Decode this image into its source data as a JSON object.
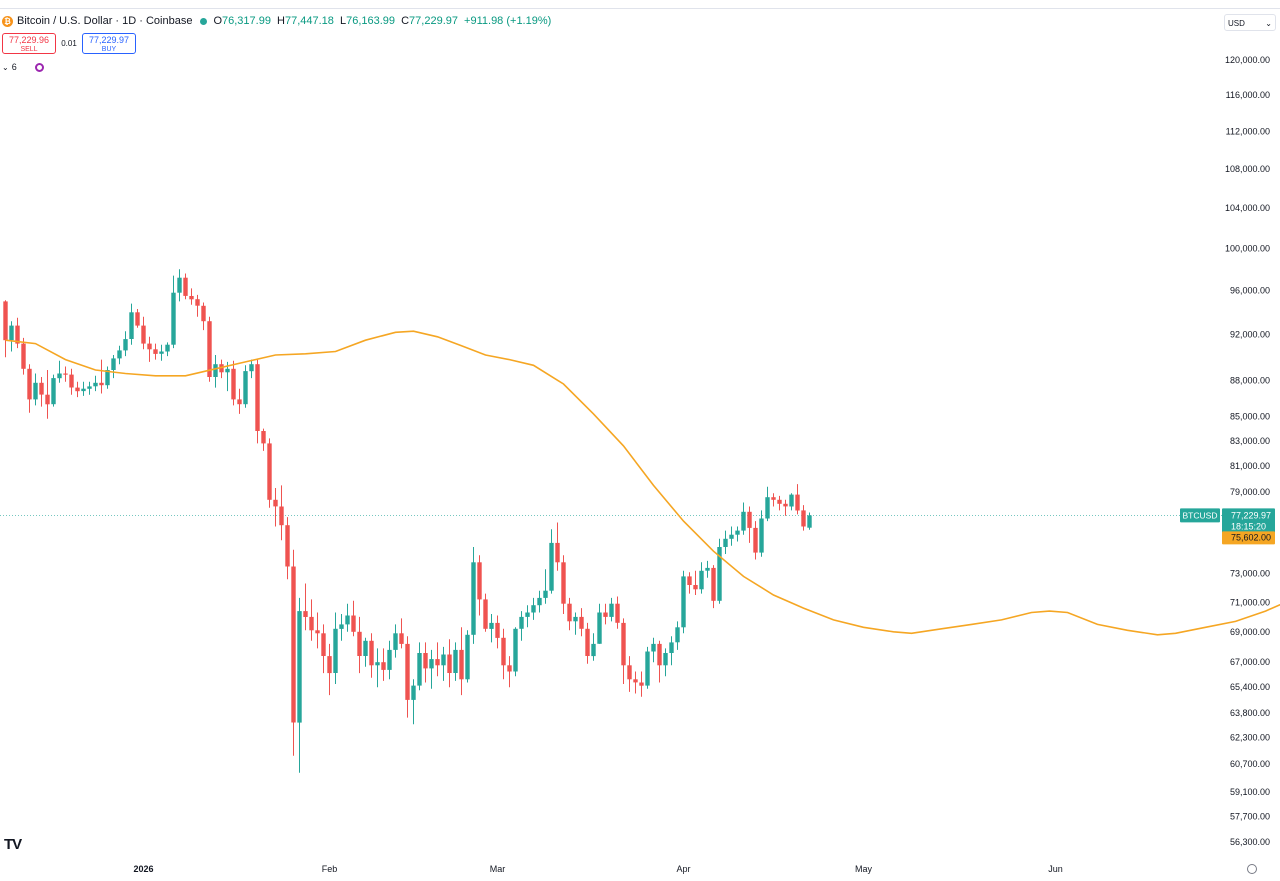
{
  "header": {
    "title": "Bitcoin / U.S. Dollar · 1D · Coinbase",
    "coin_icon": "bitcoin-icon",
    "ohlc": {
      "o_label": "O",
      "o": "76,317.99",
      "h_label": "H",
      "h": "77,447.18",
      "l_label": "L",
      "l": "76,163.99",
      "c_label": "C",
      "c": "77,229.97",
      "change": "+911.98 (+1.19%)"
    }
  },
  "trade": {
    "sell_price": "77,229.96",
    "sell_label": "SELL",
    "spread": "0.01",
    "buy_price": "77,229.97",
    "buy_label": "BUY"
  },
  "indicators": {
    "count": "6",
    "collapse_icon": "chevron-down-icon"
  },
  "currency": {
    "label": "USD",
    "icon": "chevron-down-icon"
  },
  "footer": {
    "logo": "TV",
    "settings_icon": "gear-icon"
  },
  "colors": {
    "up": "#26a69a",
    "down": "#ef5350",
    "ma": "#f5a623",
    "price_tag": "#26a69a",
    "ma_tag": "#f5a623"
  },
  "chart_data": {
    "type": "candlestick",
    "symbol": "BTCUSD",
    "last_price": "77,229.97",
    "countdown": "18:15:20",
    "ma_value": "75,602.00",
    "x_ticks": [
      "2026",
      "Feb",
      "Mar",
      "Apr",
      "May",
      "Jun"
    ],
    "y_ticks": [
      120000,
      116000,
      112000,
      108000,
      104000,
      100000,
      96000,
      92000,
      88000,
      85000,
      83000,
      81000,
      79000,
      73000,
      71000,
      69000,
      67000,
      65400,
      63800,
      62300,
      60700,
      59100,
      57700,
      56300
    ],
    "y_tick_labels": [
      "120,000.00",
      "116,000.00",
      "112,000.00",
      "108,000.00",
      "104,000.00",
      "100,000.00",
      "96,000.00",
      "92,000.00",
      "88,000.00",
      "85,000.00",
      "83,000.00",
      "81,000.00",
      "79,000.00",
      "73,000.00",
      "71,000.00",
      "69,000.00",
      "67,000.00",
      "65,400.00",
      "63,800.00",
      "62,300.00",
      "60,700.00",
      "59,100.00",
      "57,700.00",
      "56,300.00"
    ],
    "candles": [
      [
        95000,
        95100,
        90000,
        91500
      ],
      [
        91500,
        93200,
        90500,
        92800
      ],
      [
        92800,
        93500,
        90800,
        91200
      ],
      [
        91200,
        91700,
        88500,
        89000
      ],
      [
        89000,
        89400,
        85300,
        86400
      ],
      [
        86400,
        88600,
        85900,
        87800
      ],
      [
        87800,
        88300,
        85800,
        86800
      ],
      [
        86800,
        88900,
        84800,
        86000
      ],
      [
        86000,
        88500,
        85800,
        88200
      ],
      [
        88200,
        89700,
        87800,
        88600
      ],
      [
        88600,
        89200,
        87900,
        88500
      ],
      [
        88500,
        89000,
        86800,
        87400
      ],
      [
        87400,
        87900,
        86600,
        87100
      ],
      [
        87100,
        87900,
        86700,
        87300
      ],
      [
        87300,
        87900,
        86800,
        87500
      ],
      [
        87500,
        88400,
        87100,
        87800
      ],
      [
        87800,
        89800,
        86900,
        87600
      ],
      [
        87600,
        89200,
        87300,
        88900
      ],
      [
        88900,
        90200,
        88200,
        89900
      ],
      [
        89900,
        91000,
        89400,
        90600
      ],
      [
        90600,
        92300,
        90100,
        91600
      ],
      [
        91600,
        94800,
        91100,
        94000
      ],
      [
        94000,
        94300,
        92600,
        92800
      ],
      [
        92800,
        93600,
        90700,
        91200
      ],
      [
        91200,
        91800,
        89600,
        90700
      ],
      [
        90700,
        91200,
        89800,
        90300
      ],
      [
        90300,
        91100,
        89700,
        90500
      ],
      [
        90500,
        91300,
        90100,
        91100
      ],
      [
        91100,
        97400,
        90800,
        95800
      ],
      [
        95800,
        98000,
        95000,
        97200
      ],
      [
        97200,
        97600,
        95200,
        95500
      ],
      [
        95500,
        96200,
        94700,
        95200
      ],
      [
        95200,
        95600,
        93600,
        94600
      ],
      [
        94600,
        94900,
        92400,
        93200
      ],
      [
        93200,
        93600,
        87900,
        88300
      ],
      [
        88300,
        90200,
        87400,
        89400
      ],
      [
        89400,
        89800,
        88200,
        88700
      ],
      [
        88700,
        89600,
        87100,
        89000
      ],
      [
        89000,
        89700,
        85900,
        86400
      ],
      [
        86400,
        87300,
        85200,
        86000
      ],
      [
        86000,
        89300,
        85700,
        88800
      ],
      [
        88800,
        89800,
        88200,
        89400
      ],
      [
        89400,
        89800,
        82800,
        83800
      ],
      [
        83800,
        84000,
        82200,
        82800
      ],
      [
        82800,
        83200,
        77800,
        78400
      ],
      [
        78400,
        79300,
        76400,
        77900
      ],
      [
        77900,
        79500,
        75400,
        76500
      ],
      [
        76500,
        77100,
        72600,
        73500
      ],
      [
        73500,
        74700,
        61200,
        63200
      ],
      [
        63200,
        71300,
        60200,
        70400
      ],
      [
        70400,
        72300,
        69100,
        70000
      ],
      [
        70000,
        71200,
        68400,
        69100
      ],
      [
        69100,
        70300,
        67900,
        68900
      ],
      [
        68900,
        69500,
        66300,
        67400
      ],
      [
        67400,
        68200,
        64900,
        66300
      ],
      [
        66300,
        70300,
        65600,
        69200
      ],
      [
        69200,
        70200,
        68400,
        69500
      ],
      [
        69500,
        70900,
        69000,
        70100
      ],
      [
        70100,
        71100,
        68700,
        69000
      ],
      [
        69000,
        70000,
        66300,
        67400
      ],
      [
        67400,
        68600,
        66700,
        68400
      ],
      [
        68400,
        68900,
        66000,
        66800
      ],
      [
        66800,
        67900,
        65400,
        67000
      ],
      [
        67000,
        67900,
        65800,
        66500
      ],
      [
        66500,
        68400,
        65900,
        67800
      ],
      [
        67800,
        69500,
        67300,
        68900
      ],
      [
        68900,
        69900,
        67900,
        68200
      ],
      [
        68200,
        68700,
        63500,
        64600
      ],
      [
        64600,
        65900,
        63100,
        65500
      ],
      [
        65500,
        68300,
        65200,
        67600
      ],
      [
        67600,
        68300,
        65700,
        66600
      ],
      [
        66600,
        67800,
        65300,
        67200
      ],
      [
        67200,
        68300,
        66100,
        66800
      ],
      [
        66800,
        68000,
        65800,
        67500
      ],
      [
        67500,
        68500,
        65400,
        66300
      ],
      [
        66300,
        68300,
        65800,
        67800
      ],
      [
        67800,
        69300,
        64900,
        65900
      ],
      [
        65900,
        69100,
        65700,
        68800
      ],
      [
        68800,
        74900,
        68200,
        73800
      ],
      [
        73800,
        74300,
        70100,
        71200
      ],
      [
        71200,
        71600,
        69000,
        69200
      ],
      [
        69200,
        70200,
        68300,
        69600
      ],
      [
        69600,
        70100,
        67900,
        68600
      ],
      [
        68600,
        69200,
        65900,
        66800
      ],
      [
        66800,
        67400,
        65400,
        66400
      ],
      [
        66400,
        69300,
        66100,
        69200
      ],
      [
        69200,
        70400,
        68400,
        70000
      ],
      [
        70000,
        70800,
        69300,
        70300
      ],
      [
        70300,
        71300,
        69800,
        70800
      ],
      [
        70800,
        71800,
        70300,
        71300
      ],
      [
        71300,
        73300,
        70900,
        71800
      ],
      [
        71800,
        76200,
        71600,
        75200
      ],
      [
        75200,
        76700,
        73200,
        73800
      ],
      [
        73800,
        74300,
        70200,
        70900
      ],
      [
        70900,
        71300,
        69100,
        69700
      ],
      [
        69700,
        70300,
        68800,
        70000
      ],
      [
        70000,
        70600,
        68700,
        69200
      ],
      [
        69200,
        69600,
        66900,
        67400
      ],
      [
        67400,
        68900,
        67100,
        68200
      ],
      [
        68200,
        70900,
        68200,
        70300
      ],
      [
        70300,
        70900,
        69500,
        70000
      ],
      [
        70000,
        71300,
        69700,
        70900
      ],
      [
        70900,
        71400,
        69200,
        69600
      ],
      [
        69600,
        69900,
        65600,
        66800
      ],
      [
        66800,
        67400,
        65100,
        65900
      ],
      [
        65900,
        66400,
        65000,
        65700
      ],
      [
        65700,
        66400,
        64800,
        65500
      ],
      [
        65500,
        68000,
        65300,
        67700
      ],
      [
        67700,
        68600,
        67000,
        68200
      ],
      [
        68200,
        68400,
        65700,
        66800
      ],
      [
        66800,
        67900,
        66100,
        67600
      ],
      [
        67600,
        68700,
        66800,
        68300
      ],
      [
        68300,
        69700,
        67800,
        69300
      ],
      [
        69300,
        73200,
        68900,
        72800
      ],
      [
        72800,
        73100,
        71600,
        72200
      ],
      [
        72200,
        73200,
        71500,
        71900
      ],
      [
        71900,
        73800,
        71600,
        73200
      ],
      [
        73200,
        73900,
        72700,
        73400
      ],
      [
        73400,
        73600,
        70600,
        71100
      ],
      [
        71100,
        75500,
        70900,
        74900
      ],
      [
        74900,
        76100,
        74400,
        75500
      ],
      [
        75500,
        76400,
        75000,
        75800
      ],
      [
        75800,
        76400,
        75300,
        76100
      ],
      [
        76100,
        78200,
        75800,
        77500
      ],
      [
        77500,
        77900,
        75200,
        76300
      ],
      [
        76300,
        76800,
        74000,
        74500
      ],
      [
        74500,
        77600,
        74200,
        77000
      ],
      [
        77000,
        79400,
        76800,
        78600
      ],
      [
        78600,
        78900,
        77900,
        78400
      ],
      [
        78400,
        78700,
        77600,
        78100
      ],
      [
        78100,
        78400,
        77200,
        77900
      ],
      [
        77900,
        78900,
        77600,
        78800
      ],
      [
        78800,
        79600,
        77300,
        77600
      ],
      [
        77600,
        78000,
        76100,
        76400
      ],
      [
        76317.99,
        77447.18,
        76163.99,
        77229.97
      ]
    ],
    "ma_points": [
      [
        0,
        91500
      ],
      [
        5,
        91200
      ],
      [
        10,
        89800
      ],
      [
        15,
        88900
      ],
      [
        20,
        88600
      ],
      [
        25,
        88400
      ],
      [
        30,
        88400
      ],
      [
        35,
        89000
      ],
      [
        40,
        89600
      ],
      [
        45,
        90200
      ],
      [
        50,
        90300
      ],
      [
        55,
        90500
      ],
      [
        60,
        91500
      ],
      [
        65,
        92200
      ],
      [
        68,
        92300
      ],
      [
        72,
        91800
      ],
      [
        76,
        91000
      ],
      [
        80,
        90200
      ],
      [
        84,
        89800
      ],
      [
        88,
        89300
      ],
      [
        93,
        87700
      ],
      [
        98,
        85200
      ],
      [
        103,
        82600
      ],
      [
        108,
        79500
      ],
      [
        113,
        76800
      ],
      [
        118,
        74600
      ],
      [
        123,
        72800
      ],
      [
        128,
        71500
      ],
      [
        133,
        70600
      ],
      [
        138,
        69800
      ],
      [
        143,
        69300
      ],
      [
        148,
        69000
      ],
      [
        151,
        68900
      ],
      [
        156,
        69200
      ],
      [
        161,
        69500
      ],
      [
        166,
        69800
      ],
      [
        171,
        70300
      ],
      [
        174,
        70400
      ],
      [
        177,
        70300
      ],
      [
        182,
        69500
      ],
      [
        187,
        69100
      ],
      [
        192,
        68800
      ],
      [
        195,
        68900
      ],
      [
        200,
        69300
      ],
      [
        205,
        69700
      ],
      [
        210,
        70400
      ],
      [
        215,
        71300
      ],
      [
        220,
        72400
      ],
      [
        225,
        73600
      ],
      [
        230,
        74500
      ],
      [
        235,
        75100
      ],
      [
        238,
        75602
      ]
    ]
  }
}
